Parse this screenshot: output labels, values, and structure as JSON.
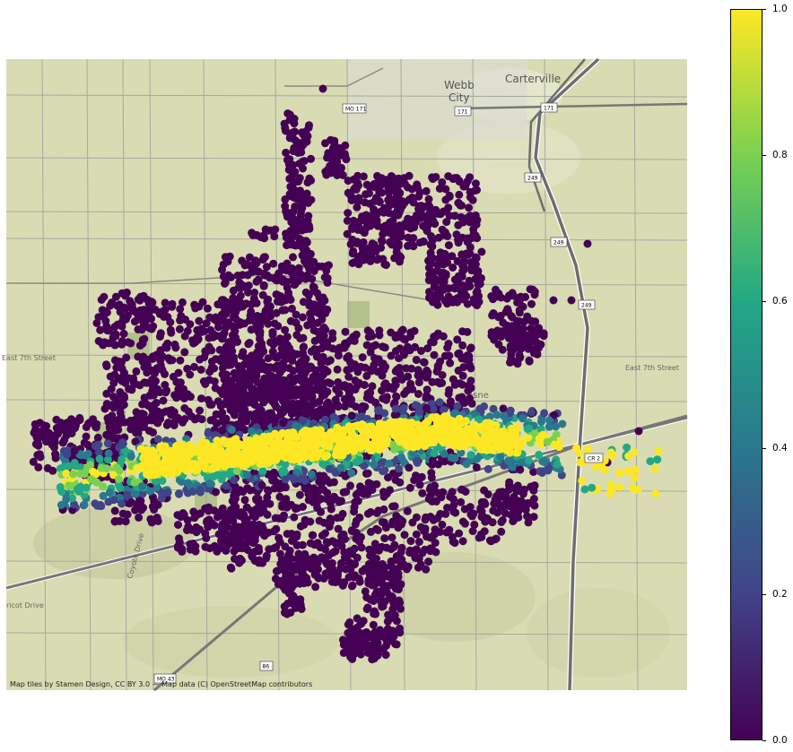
{
  "map": {
    "attribution": "Map tiles by Stamen Design, CC BY 3.0 — Map data (C) OpenStreetMap contributors",
    "labels": {
      "webb": "Webb",
      "city": "City",
      "carterville": "Carterville",
      "east_7th_left": "East 7th Street",
      "east_7th_right": "East 7th Street",
      "coyote_drive": "Coyote Drive",
      "apricot_drive": "ricot Drive",
      "duquesne_partial": "esne"
    },
    "shields": [
      {
        "id": "mo171",
        "text": "MO 171"
      },
      {
        "id": "r171a",
        "text": "171"
      },
      {
        "id": "r171b",
        "text": "171"
      },
      {
        "id": "r249a",
        "text": "249"
      },
      {
        "id": "r249b",
        "text": "249"
      },
      {
        "id": "r249c",
        "text": "249"
      },
      {
        "id": "cr",
        "text": "CR 2"
      },
      {
        "id": "mo43",
        "text": "MO 43"
      },
      {
        "id": "r86",
        "text": "86"
      }
    ]
  },
  "colorbar": {
    "ticks": [
      "0.0",
      "0.2",
      "0.4",
      "0.6",
      "0.8",
      "1.0"
    ],
    "range": [
      0.0,
      1.0
    ],
    "colormap": "viridis",
    "colors": [
      "#440154",
      "#414487",
      "#2a788e",
      "#22a884",
      "#7ad151",
      "#fde725"
    ]
  },
  "colors": {
    "map_bg": "#d8dbb0",
    "road": "#9a9a9a",
    "highway": "#6f6f6f",
    "low": "#440154",
    "high": "#fde725"
  }
}
